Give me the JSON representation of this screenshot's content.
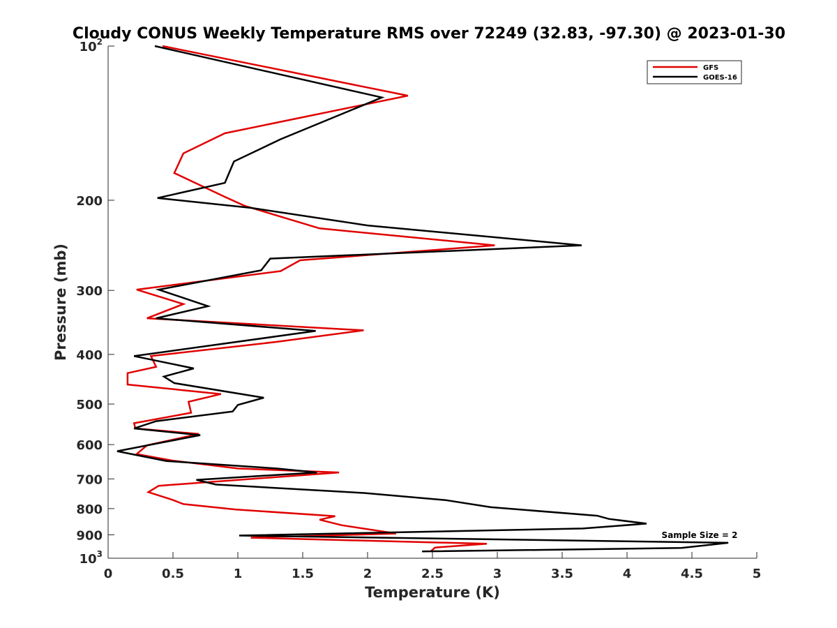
{
  "chart_data": {
    "type": "line",
    "title": "Cloudy CONUS Weekly Temperature RMS over 72249 (32.83, -97.30) @ 2023-01-30",
    "xlabel": "Temperature (K)",
    "ylabel": "Pressure (mb)",
    "xlim": [
      0,
      5
    ],
    "ylim": [
      100,
      1000
    ],
    "y_scale": "log",
    "y_reversed": true,
    "grid": false,
    "legend_position": "top-right",
    "x_ticks": [
      "0",
      "0.5",
      "1",
      "1.5",
      "2",
      "2.5",
      "3",
      "3.5",
      "4",
      "4.5",
      "5"
    ],
    "y_ticks": [
      {
        "value": 100,
        "base": "10",
        "exp": "2"
      },
      {
        "value": 200,
        "base": "200",
        "exp": ""
      },
      {
        "value": 300,
        "base": "300",
        "exp": ""
      },
      {
        "value": 400,
        "base": "400",
        "exp": ""
      },
      {
        "value": 500,
        "base": "500",
        "exp": ""
      },
      {
        "value": 600,
        "base": "600",
        "exp": ""
      },
      {
        "value": 700,
        "base": "700",
        "exp": ""
      },
      {
        "value": 800,
        "base": "800",
        "exp": ""
      },
      {
        "value": 900,
        "base": "900",
        "exp": ""
      },
      {
        "value": 1000,
        "base": "10",
        "exp": "3"
      }
    ],
    "annotation": "Sample Size = 2",
    "series": [
      {
        "name": "GFS",
        "color": "#e00000",
        "points": [
          [
            0.42,
            100
          ],
          [
            2.31,
            125
          ],
          [
            0.9,
            148
          ],
          [
            0.58,
            162
          ],
          [
            0.51,
            177
          ],
          [
            0.9,
            197
          ],
          [
            1.05,
            205
          ],
          [
            1.63,
            227
          ],
          [
            2.98,
            245
          ],
          [
            1.48,
            262
          ],
          [
            1.33,
            275
          ],
          [
            0.22,
            299
          ],
          [
            0.58,
            319
          ],
          [
            0.3,
            340
          ],
          [
            1.97,
            359
          ],
          [
            1.3,
            378
          ],
          [
            0.33,
            403
          ],
          [
            0.37,
            423
          ],
          [
            0.15,
            435
          ],
          [
            0.15,
            458
          ],
          [
            0.87,
            478
          ],
          [
            0.62,
            495
          ],
          [
            0.64,
            520
          ],
          [
            0.2,
            545
          ],
          [
            0.21,
            558
          ],
          [
            0.7,
            572
          ],
          [
            0.3,
            602
          ],
          [
            0.22,
            626
          ],
          [
            0.5,
            645
          ],
          [
            1.0,
            668
          ],
          [
            1.78,
            680
          ],
          [
            0.39,
            722
          ],
          [
            0.31,
            743
          ],
          [
            0.49,
            768
          ],
          [
            0.58,
            784
          ],
          [
            0.98,
            803
          ],
          [
            1.75,
            828
          ],
          [
            1.63,
            841
          ],
          [
            1.8,
            862
          ],
          [
            2.22,
            895
          ],
          [
            1.1,
            912
          ],
          [
            2.92,
            937
          ],
          [
            2.52,
            953
          ],
          [
            2.49,
            968
          ]
        ]
      },
      {
        "name": "GOES-16",
        "color": "#000000",
        "points": [
          [
            0.36,
            100
          ],
          [
            2.11,
            126
          ],
          [
            1.33,
            152
          ],
          [
            0.97,
            168
          ],
          [
            0.9,
            185
          ],
          [
            0.38,
            198
          ],
          [
            1.1,
            207
          ],
          [
            2.0,
            224
          ],
          [
            3.65,
            245
          ],
          [
            1.25,
            260
          ],
          [
            1.18,
            274
          ],
          [
            0.39,
            299
          ],
          [
            0.77,
            322
          ],
          [
            0.37,
            340
          ],
          [
            1.6,
            360
          ],
          [
            0.2,
            403
          ],
          [
            0.66,
            426
          ],
          [
            0.43,
            442
          ],
          [
            0.51,
            455
          ],
          [
            1.2,
            486
          ],
          [
            1.0,
            502
          ],
          [
            0.96,
            517
          ],
          [
            0.37,
            540
          ],
          [
            0.2,
            558
          ],
          [
            0.71,
            575
          ],
          [
            0.07,
            618
          ],
          [
            0.45,
            646
          ],
          [
            1.3,
            668
          ],
          [
            1.61,
            680
          ],
          [
            0.68,
            703
          ],
          [
            0.83,
            718
          ],
          [
            1.98,
            746
          ],
          [
            2.6,
            770
          ],
          [
            2.95,
            795
          ],
          [
            3.77,
            826
          ],
          [
            3.86,
            838
          ],
          [
            4.15,
            856
          ],
          [
            3.66,
            875
          ],
          [
            1.01,
            903
          ],
          [
            4.78,
            933
          ],
          [
            4.42,
            955
          ],
          [
            2.42,
            970
          ]
        ]
      }
    ]
  }
}
